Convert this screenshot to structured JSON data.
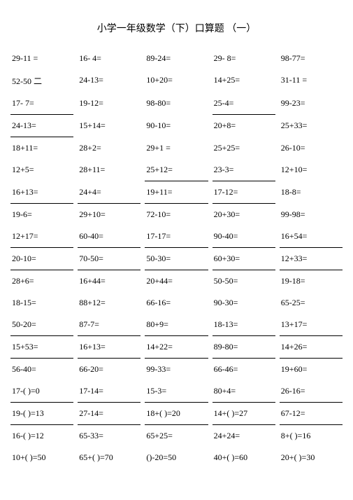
{
  "title": "小学一年级数学（下）口算题 （一）",
  "columns": 5,
  "font": {
    "title_size": 14,
    "cell_size": 12
  },
  "colors": {
    "text": "#000000",
    "background": "#ffffff",
    "line": "#000000"
  },
  "rows": [
    {
      "cells": [
        "29-11 =",
        "16- 4=",
        "89-24=",
        "29- 8=",
        "98-77="
      ],
      "ul": [
        false,
        false,
        false,
        false,
        false
      ]
    },
    {
      "cells": [
        "52-50 二",
        "24-13=",
        "10+20=",
        "14+25=",
        "31-11 ="
      ],
      "ul": [
        false,
        false,
        false,
        false,
        false
      ]
    },
    {
      "cells": [
        "17- 7=",
        "19-12=",
        "98-80=",
        "25-4=",
        "99-23="
      ],
      "ul": [
        true,
        false,
        false,
        true,
        false
      ]
    },
    {
      "cells": [
        "24-13=",
        "15+14=",
        "90-10=",
        "20+8=",
        "25+33="
      ],
      "ul": [
        true,
        false,
        false,
        false,
        false
      ]
    },
    {
      "cells": [
        "18+11=",
        "28+2=",
        "29+1 =",
        "25+25=",
        "26-10="
      ],
      "ul": [
        false,
        false,
        false,
        false,
        false
      ]
    },
    {
      "cells": [
        "12+5=",
        "28+11=",
        "25+12=",
        "23-3=",
        "12+10="
      ],
      "ul": [
        false,
        false,
        true,
        true,
        false
      ]
    },
    {
      "cells": [
        "16+13=",
        "24+4=",
        "19+11=",
        "17-12=",
        "18-8="
      ],
      "ul": [
        true,
        true,
        true,
        true,
        false
      ]
    },
    {
      "cells": [
        "19-6=",
        "29+10=",
        "72-10=",
        "20+30=",
        "99-98="
      ],
      "ul": [
        false,
        false,
        false,
        false,
        false
      ]
    },
    {
      "cells": [
        "12+17=",
        "60-40=",
        "17-17=",
        "90-40=",
        "16+54="
      ],
      "ul": [
        true,
        true,
        true,
        true,
        true
      ]
    },
    {
      "cells": [
        "20-10=",
        "70-50=",
        "50-30=",
        "60+30=",
        "12+33="
      ],
      "ul": [
        true,
        true,
        true,
        true,
        true
      ]
    },
    {
      "cells": [
        "28+6=",
        "16+44=",
        "20+44=",
        "50-50=",
        "19-18="
      ],
      "ul": [
        false,
        false,
        false,
        false,
        false
      ]
    },
    {
      "cells": [
        "18-15=",
        "88+12=",
        "66-16=",
        "90-30=",
        "65-25="
      ],
      "ul": [
        false,
        false,
        false,
        false,
        false
      ]
    },
    {
      "cells": [
        "50-20=",
        "87-7=",
        "80+9=",
        "18-13=",
        "13+17="
      ],
      "ul": [
        true,
        true,
        true,
        true,
        true
      ]
    },
    {
      "cells": [
        "15+53=",
        "16+13=",
        "14+22=",
        "89-80=",
        "14+26="
      ],
      "ul": [
        true,
        true,
        true,
        true,
        true
      ]
    },
    {
      "cells": [
        "56-40=",
        "66-20=",
        "99-33=",
        "66-46=",
        "19+60="
      ],
      "ul": [
        false,
        false,
        false,
        false,
        false
      ]
    },
    {
      "cells": [
        "17-(   )=0",
        "17-14=",
        "15-3=",
        "80+4=",
        "26-16="
      ],
      "ul": [
        true,
        true,
        true,
        true,
        true
      ]
    },
    {
      "cells": [
        "19-(   )=13",
        "27-14=",
        "18+( )=20",
        "14+(   )=27",
        "67-12="
      ],
      "ul": [
        true,
        true,
        true,
        true,
        true
      ]
    },
    {
      "cells": [
        "16-( )=12",
        "65-33=",
        "65+25=",
        "24+24=",
        "8+( )=16"
      ],
      "ul": [
        false,
        false,
        false,
        false,
        false
      ]
    },
    {
      "cells": [
        "10+(   )=50",
        "65+(   )=70",
        "()-20=50",
        "40+(   )=60",
        "20+(   )=30"
      ],
      "ul": [
        false,
        false,
        false,
        false,
        false
      ]
    }
  ]
}
